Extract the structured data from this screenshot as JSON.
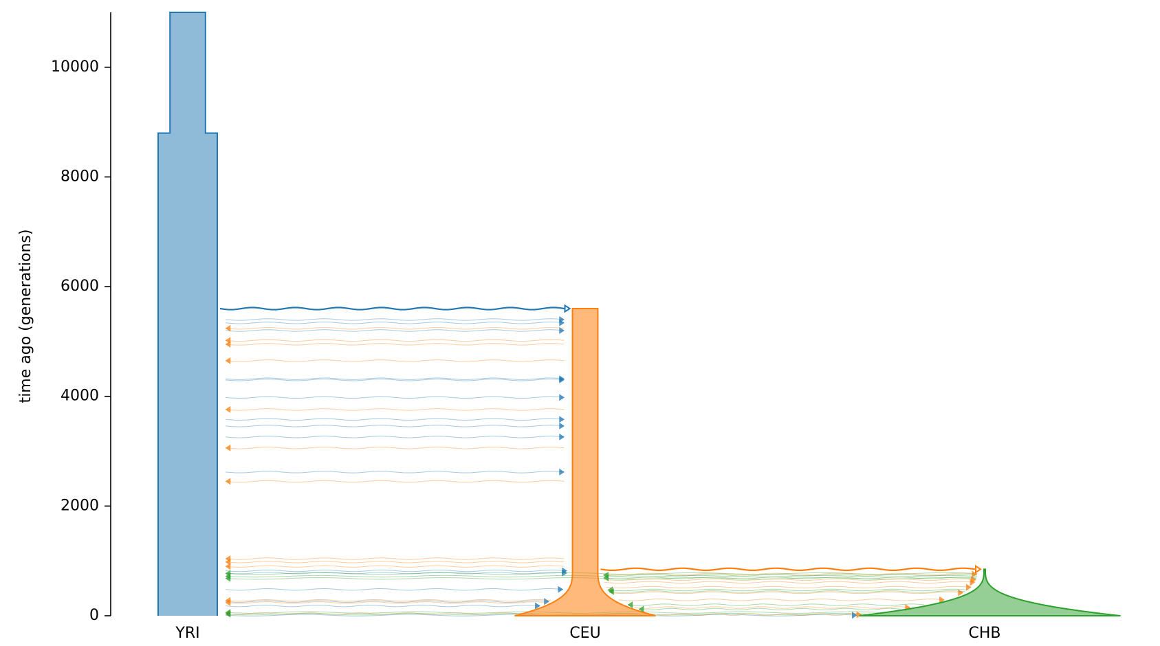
{
  "chart_data": {
    "type": "demography",
    "title": "",
    "xlabel": "",
    "ylabel": "time ago (generations)",
    "ylim": [
      0,
      11000
    ],
    "y_ticks": [
      0,
      2000,
      4000,
      6000,
      8000,
      10000
    ],
    "y_tick_labels": [
      "0",
      "2000",
      "4000",
      "6000",
      "8000",
      "10000"
    ],
    "grid": false,
    "colors": {
      "YRI": "#1f77b4",
      "CEU": "#ff7f0e",
      "CHB": "#2ca02c"
    },
    "populations": [
      {
        "name": "YRI",
        "color": "#1f77b4",
        "epochs": [
          {
            "start_time": 8800,
            "end_time": 11000,
            "relative_width": 0.6
          },
          {
            "start_time": 0,
            "end_time": 8800,
            "relative_width": 1.0
          }
        ]
      },
      {
        "name": "CEU",
        "color": "#ff7f0e",
        "epochs": [
          {
            "start_time": 848,
            "end_time": 5600,
            "relative_width": 0.18,
            "growth": "constant"
          },
          {
            "start_time": 0,
            "end_time": 848,
            "relative_width": 1.0,
            "growth": "exponential"
          }
        ]
      },
      {
        "name": "CHB",
        "color": "#2ca02c",
        "epochs": [
          {
            "start_time": 0,
            "end_time": 848,
            "relative_width": 1.0,
            "growth": "exponential"
          }
        ]
      }
    ],
    "splits": [
      {
        "time": 5600,
        "source": "YRI",
        "dest": "CEU"
      },
      {
        "time": 848,
        "source": "CEU",
        "dest": "CHB"
      }
    ],
    "migrations": [
      {
        "source": "YRI",
        "dest": "CEU",
        "times": [
          5400,
          5340,
          5200,
          4320,
          4300,
          3980,
          3580,
          3460,
          3260,
          2620,
          820,
          780,
          480,
          260,
          180
        ]
      },
      {
        "source": "CEU",
        "dest": "YRI",
        "times": [
          5240,
          5020,
          4950,
          4650,
          3760,
          3060,
          2450,
          1040,
          980,
          900,
          280,
          240,
          40
        ]
      },
      {
        "source": "CHB",
        "dest": "YRI",
        "times": [
          770,
          720,
          680,
          60,
          30
        ]
      },
      {
        "source": "YRI",
        "dest": "CHB",
        "times": [
          10
        ]
      },
      {
        "source": "CEU",
        "dest": "CHB",
        "times": [
          760,
          660,
          610,
          520,
          420,
          290,
          150,
          20
        ]
      },
      {
        "source": "CHB",
        "dest": "CEU",
        "times": [
          740,
          690,
          470,
          440,
          200,
          120
        ]
      }
    ]
  }
}
